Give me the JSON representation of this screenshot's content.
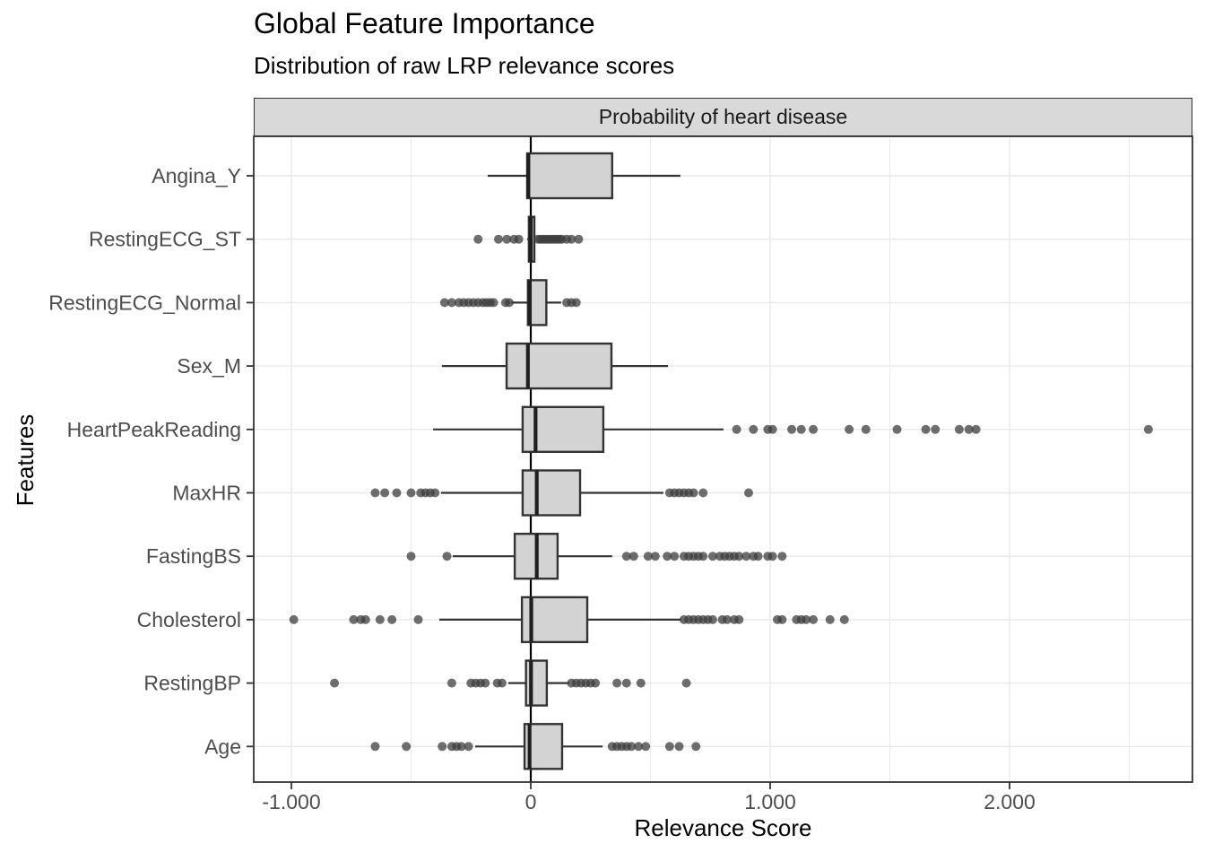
{
  "title": "Global Feature Importance",
  "subtitle": "Distribution of raw LRP relevance scores",
  "facet_label": "Probability of heart disease",
  "axes": {
    "x_title": "Relevance Score",
    "y_title": "Features"
  },
  "colors": {
    "box_fill": "#d3d3d3",
    "box_stroke": "#333333",
    "median": "#1f1f1f",
    "point": "#3d3d3d",
    "grid": "#e8e8e8",
    "panel_border": "#333333",
    "strip_fill": "#d9d9d9",
    "axis_text": "#4d4d4d",
    "zero_line": "#000000",
    "tick": "#333333"
  },
  "chart_data": {
    "type": "boxplot",
    "orientation": "horizontal",
    "title": "Global Feature Importance",
    "subtitle": "Distribution of raw LRP relevance scores",
    "facet": "Probability of heart disease",
    "xlabel": "Relevance Score",
    "ylabel": "Features",
    "xlim": [
      -1.15,
      2.77
    ],
    "grid": "on",
    "legend": "none",
    "reference_line_x": 0,
    "x_ticks": {
      "values": [
        -1,
        0,
        1,
        2
      ],
      "labels": [
        "-1.000",
        "0",
        "1.000",
        "2.000"
      ]
    },
    "x_minor_ticks": [
      -0.5,
      0.5,
      1.5,
      2.5
    ],
    "features": [
      {
        "name": "Angina_Y",
        "whisker_min": -0.18,
        "q1": -0.015,
        "median": -0.01,
        "q3": 0.34,
        "whisker_max": 0.625,
        "outliers": []
      },
      {
        "name": "RestingECG_ST",
        "whisker_min": -0.015,
        "q1": -0.008,
        "median": 0.0,
        "q3": 0.015,
        "whisker_max": 0.02,
        "outliers": [
          -0.22,
          -0.135,
          -0.1,
          -0.07,
          -0.05,
          0.03,
          0.04,
          0.05,
          0.06,
          0.07,
          0.08,
          0.09,
          0.1,
          0.11,
          0.12,
          0.13,
          0.15,
          0.17,
          0.2
        ]
      },
      {
        "name": "RestingECG_Normal",
        "whisker_min": -0.082,
        "q1": -0.012,
        "median": -0.004,
        "q3": 0.065,
        "whisker_max": 0.127,
        "outliers": [
          -0.36,
          -0.33,
          -0.3,
          -0.28,
          -0.26,
          -0.24,
          -0.22,
          -0.2,
          -0.185,
          -0.17,
          -0.155,
          -0.105,
          -0.09,
          0.15,
          0.17,
          0.19
        ]
      },
      {
        "name": "Sex_M",
        "whisker_min": -0.371,
        "q1": -0.101,
        "median": -0.012,
        "q3": 0.337,
        "whisker_max": 0.573,
        "outliers": []
      },
      {
        "name": "HeartPeakReading",
        "whisker_min": -0.408,
        "q1": -0.034,
        "median": 0.02,
        "q3": 0.303,
        "whisker_max": 0.805,
        "outliers": [
          0.86,
          0.93,
          0.99,
          1.01,
          1.09,
          1.13,
          1.18,
          1.33,
          1.4,
          1.53,
          1.65,
          1.69,
          1.79,
          1.83,
          1.86,
          2.58
        ]
      },
      {
        "name": "MaxHR",
        "whisker_min": -0.375,
        "q1": -0.034,
        "median": 0.025,
        "q3": 0.206,
        "whisker_max": 0.554,
        "outliers": [
          -0.65,
          -0.61,
          -0.56,
          -0.5,
          -0.46,
          -0.44,
          -0.42,
          -0.4,
          0.58,
          0.6,
          0.62,
          0.64,
          0.66,
          0.68,
          0.72,
          0.91
        ]
      },
      {
        "name": "FastingBS",
        "whisker_min": -0.326,
        "q1": -0.067,
        "median": 0.025,
        "q3": 0.112,
        "whisker_max": 0.34,
        "outliers": [
          -0.5,
          -0.35,
          0.4,
          0.43,
          0.49,
          0.52,
          0.57,
          0.6,
          0.64,
          0.66,
          0.68,
          0.7,
          0.72,
          0.76,
          0.79,
          0.81,
          0.83,
          0.85,
          0.87,
          0.9,
          0.93,
          0.95,
          0.99,
          1.01,
          1.05
        ]
      },
      {
        "name": "Cholesterol",
        "whisker_min": -0.382,
        "q1": -0.037,
        "median": 0.002,
        "q3": 0.236,
        "whisker_max": 0.629,
        "outliers": [
          -0.99,
          -0.74,
          -0.71,
          -0.69,
          -0.63,
          -0.58,
          -0.47,
          0.64,
          0.66,
          0.68,
          0.7,
          0.72,
          0.74,
          0.76,
          0.8,
          0.82,
          0.85,
          0.87,
          1.03,
          1.05,
          1.11,
          1.13,
          1.15,
          1.18,
          1.25,
          1.31
        ]
      },
      {
        "name": "RestingBP",
        "whisker_min": -0.094,
        "q1": -0.02,
        "median": 0.001,
        "q3": 0.067,
        "whisker_max": 0.161,
        "outliers": [
          -0.82,
          -0.33,
          -0.25,
          -0.23,
          -0.21,
          -0.19,
          -0.14,
          -0.12,
          0.17,
          0.19,
          0.21,
          0.23,
          0.25,
          0.27,
          0.36,
          0.4,
          0.46,
          0.65
        ]
      },
      {
        "name": "Age",
        "whisker_min": -0.232,
        "q1": -0.026,
        "median": -0.005,
        "q3": 0.131,
        "whisker_max": 0.3,
        "outliers": [
          -0.65,
          -0.52,
          -0.37,
          -0.33,
          -0.31,
          -0.29,
          -0.26,
          0.34,
          0.36,
          0.38,
          0.4,
          0.42,
          0.45,
          0.48,
          0.58,
          0.62,
          0.69
        ]
      }
    ]
  }
}
